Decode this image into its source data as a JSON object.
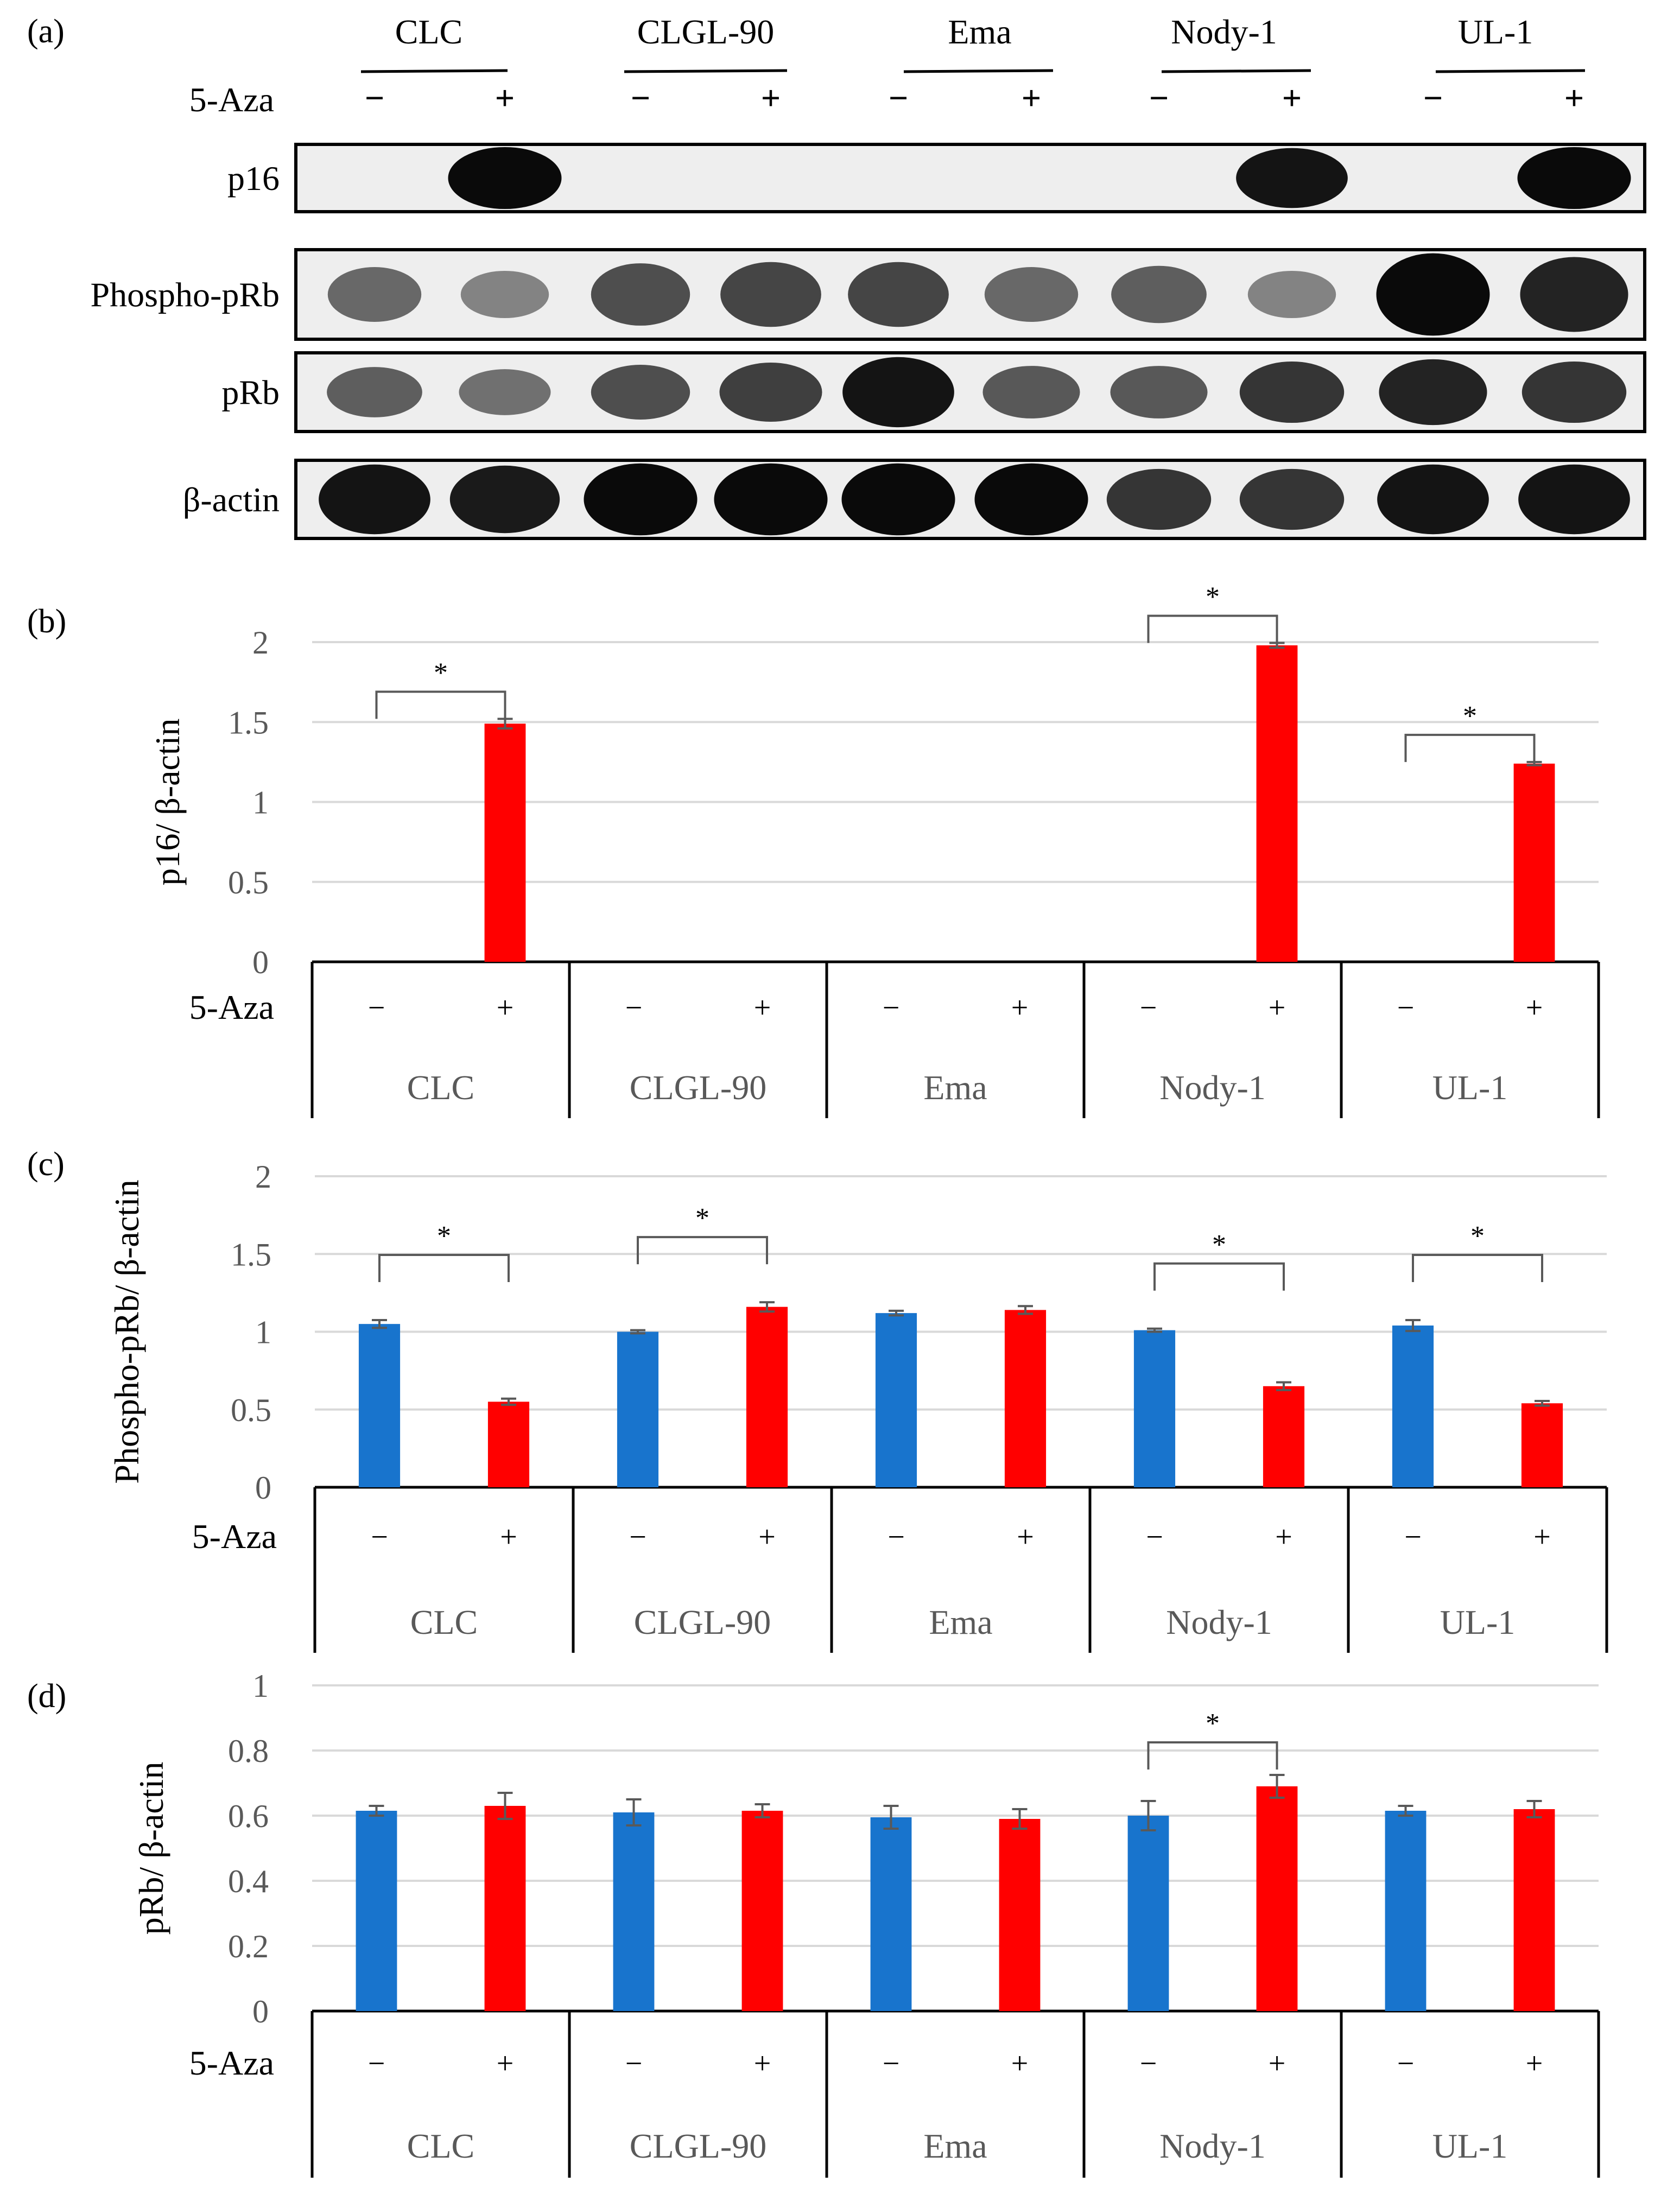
{
  "figure": {
    "panel_labels": [
      "(a)",
      "(b)",
      "(c)",
      "(d)"
    ],
    "colors": {
      "untreated": "#1874CD",
      "treated": "#FF0000",
      "axis": "#000000",
      "grid": "#D9D9D9",
      "tick_text": "#595959",
      "error_bar": "#595959",
      "blot_background": "#EEEEEE",
      "band": "#0A0A0A"
    }
  },
  "western_blot": {
    "cell_lines": [
      "CLC",
      "CLGL-90",
      "Ema",
      "Nody-1",
      "UL-1"
    ],
    "treatment_label": "5-Aza",
    "minus_sign": "−",
    "plus_sign": "+",
    "rows": [
      {
        "label": "p16",
        "intensity": [
          0.0,
          1.0,
          0.0,
          0.0,
          0.0,
          0.0,
          0.0,
          0.95,
          0.0,
          1.0
        ]
      },
      {
        "label": "Phospho-pRb",
        "intensity": [
          0.45,
          0.3,
          0.6,
          0.65,
          0.65,
          0.45,
          0.5,
          0.3,
          1.0,
          0.85
        ]
      },
      {
        "label": "pRb",
        "intensity": [
          0.5,
          0.4,
          0.6,
          0.7,
          0.95,
          0.55,
          0.55,
          0.75,
          0.85,
          0.75
        ]
      },
      {
        "label": "β-actin",
        "intensity": [
          0.95,
          0.9,
          1.0,
          1.0,
          1.0,
          1.0,
          0.75,
          0.75,
          0.95,
          0.95
        ]
      }
    ]
  },
  "chart_data": [
    {
      "panel": "(b)",
      "type": "bar",
      "ylabel": "p16/ β-actin",
      "ylim": [
        0,
        2
      ],
      "yticks": [
        0,
        0.5,
        1,
        1.5,
        2
      ],
      "ytick_labels": [
        "0",
        "0.5",
        "1",
        "1.5",
        "2"
      ],
      "categories": [
        "CLC",
        "CLGL-90",
        "Ema",
        "Nody-1",
        "UL-1"
      ],
      "treatment_label": "5-Aza",
      "series": [
        {
          "name": "−",
          "values": [
            0,
            0,
            0,
            0,
            0
          ],
          "errors": [
            0,
            0,
            0,
            0,
            0
          ]
        },
        {
          "name": "+",
          "values": [
            1.49,
            0,
            0,
            1.98,
            1.24
          ],
          "errors": [
            0.03,
            0,
            0,
            0.015,
            0.01
          ]
        }
      ],
      "significance": [
        true,
        false,
        false,
        true,
        true
      ],
      "significance_label": "*"
    },
    {
      "panel": "(c)",
      "type": "bar",
      "ylabel": "Phospho-pRb/ β-actin",
      "ylim": [
        0,
        2
      ],
      "yticks": [
        0,
        0.5,
        1,
        1.5,
        2
      ],
      "ytick_labels": [
        "0",
        "0.5",
        "1",
        "1.5",
        "2"
      ],
      "categories": [
        "CLC",
        "CLGL-90",
        "Ema",
        "Nody-1",
        "UL-1"
      ],
      "treatment_label": "5-Aza",
      "series": [
        {
          "name": "−",
          "values": [
            1.05,
            1.0,
            1.12,
            1.01,
            1.04
          ],
          "errors": [
            0.025,
            0.01,
            0.015,
            0.01,
            0.035
          ]
        },
        {
          "name": "+",
          "values": [
            0.55,
            1.16,
            1.14,
            0.65,
            0.54
          ],
          "errors": [
            0.02,
            0.03,
            0.025,
            0.025,
            0.015
          ]
        }
      ],
      "significance": [
        true,
        true,
        false,
        true,
        true
      ],
      "significance_label": "*"
    },
    {
      "panel": "(d)",
      "type": "bar",
      "ylabel": "pRb/ β-actin",
      "ylim": [
        0,
        1
      ],
      "yticks": [
        0,
        0.2,
        0.4,
        0.6,
        0.8,
        1
      ],
      "ytick_labels": [
        "0",
        "0.2",
        "0.4",
        "0.6",
        "0.8",
        "1"
      ],
      "categories": [
        "CLC",
        "CLGL-90",
        "Ema",
        "Nody-1",
        "UL-1"
      ],
      "treatment_label": "5-Aza",
      "series": [
        {
          "name": "−",
          "values": [
            0.615,
            0.61,
            0.595,
            0.6,
            0.615
          ],
          "errors": [
            0.015,
            0.04,
            0.035,
            0.045,
            0.015
          ]
        },
        {
          "name": "+",
          "values": [
            0.63,
            0.615,
            0.59,
            0.69,
            0.62
          ],
          "errors": [
            0.04,
            0.02,
            0.03,
            0.035,
            0.025
          ]
        }
      ],
      "significance": [
        false,
        false,
        false,
        true,
        false
      ],
      "significance_label": "*"
    }
  ]
}
